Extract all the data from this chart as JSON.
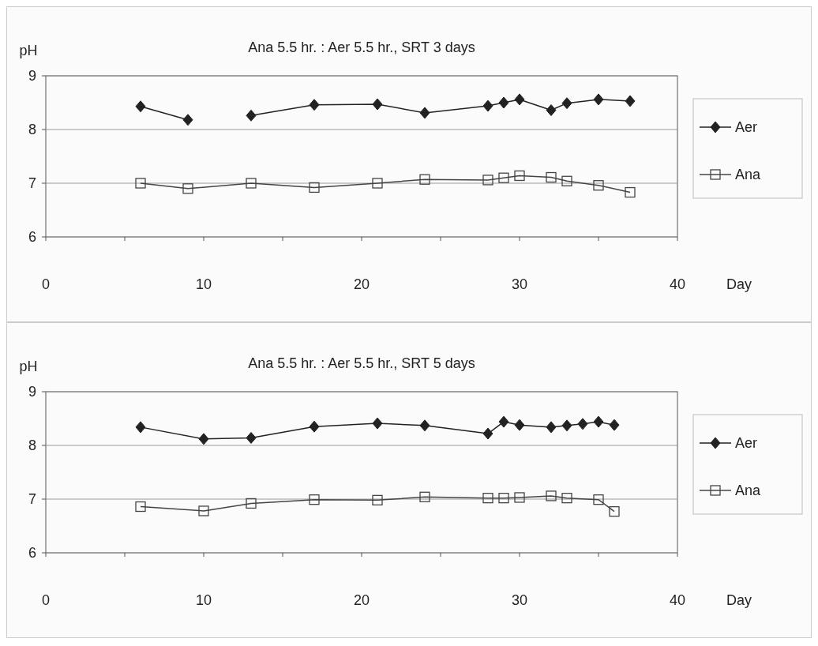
{
  "chart_data": [
    {
      "type": "line",
      "title": "Ana 5.5 hr. : Aer 5.5 hr.,  SRT 3 days",
      "xlabel": "Day",
      "ylabel": "pH",
      "xlim": [
        0,
        40
      ],
      "ylim": [
        6,
        9
      ],
      "xticks": [
        0,
        {
          "value": 5,
          "label": null
        },
        10,
        {
          "value": 15,
          "label": null
        },
        20,
        {
          "value": 25,
          "label": null
        },
        30,
        {
          "value": 35,
          "label": null
        },
        40
      ],
      "yticks": [
        6,
        7,
        8,
        9
      ],
      "grid": "y",
      "legend": "right",
      "series": [
        {
          "name": "Aer",
          "color": "#222222",
          "marker": "diamond",
          "x": [
            6,
            9,
            11,
            13,
            17,
            21,
            24,
            28,
            29,
            30,
            32,
            33,
            35,
            37
          ],
          "values": [
            8.43,
            8.18,
            null,
            8.26,
            8.46,
            8.47,
            8.31,
            8.44,
            8.5,
            8.56,
            8.36,
            8.49,
            8.56,
            8.53
          ]
        },
        {
          "name": "Ana",
          "color": "#444444",
          "marker": "square",
          "x": [
            6,
            9,
            13,
            17,
            21,
            24,
            28,
            29,
            30,
            32,
            33,
            35,
            37
          ],
          "values": [
            7.0,
            6.9,
            7.0,
            6.92,
            7.0,
            7.07,
            7.06,
            7.1,
            7.14,
            7.11,
            7.04,
            6.96,
            6.83
          ]
        }
      ]
    },
    {
      "type": "line",
      "title": "Ana 5.5 hr. : Aer 5.5 hr.,  SRT 5 days",
      "xlabel": "Day",
      "ylabel": "pH",
      "xlim": [
        0,
        40
      ],
      "ylim": [
        6,
        9
      ],
      "xticks": [
        0,
        {
          "value": 5,
          "label": null
        },
        10,
        {
          "value": 15,
          "label": null
        },
        20,
        {
          "value": 25,
          "label": null
        },
        30,
        {
          "value": 35,
          "label": null
        },
        40
      ],
      "yticks": [
        6,
        7,
        8,
        9
      ],
      "grid": "y",
      "legend": "right",
      "series": [
        {
          "name": "Aer",
          "color": "#222222",
          "marker": "diamond",
          "x": [
            6,
            10,
            13,
            17,
            21,
            24,
            28,
            29,
            30,
            32,
            33,
            34,
            35,
            36
          ],
          "values": [
            8.34,
            8.12,
            8.14,
            8.35,
            8.41,
            8.37,
            8.22,
            8.44,
            8.38,
            8.34,
            8.37,
            8.4,
            8.44,
            8.38
          ]
        },
        {
          "name": "Ana",
          "color": "#444444",
          "marker": "square",
          "x": [
            6,
            10,
            13,
            17,
            21,
            24,
            28,
            29,
            30,
            32,
            33,
            35,
            36
          ],
          "values": [
            6.86,
            6.78,
            6.92,
            6.99,
            6.98,
            7.04,
            7.02,
            7.02,
            7.03,
            7.06,
            7.02,
            6.99,
            6.77
          ]
        }
      ]
    }
  ]
}
